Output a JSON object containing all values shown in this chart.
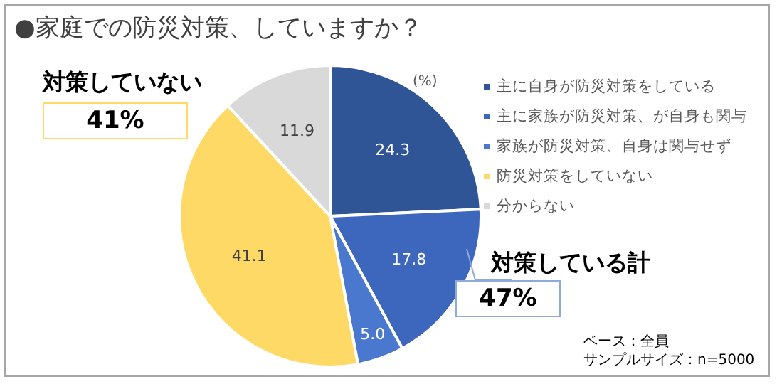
{
  "chart_data": {
    "type": "pie",
    "title": "●家庭での防災対策、していますか？",
    "categories": [
      "主に自身が防災対策をしている",
      "主に家族が防災対策、が自身も関与",
      "家族が防災対策、自身は関与せず",
      "防災対策をしていない",
      "分からない"
    ],
    "values": [
      24.3,
      17.8,
      5.0,
      41.1,
      11.9
    ],
    "colors": [
      "#2f5597",
      "#3c67bd",
      "#4a78cf",
      "#ffd966",
      "#d9d9d9"
    ],
    "value_labels": [
      "24.3",
      "17.8",
      "5.0",
      "41.1",
      "11.9"
    ],
    "legend": "right",
    "annotations": [
      "(%)",
      "対策していない",
      "41%",
      "対策している計",
      "47%",
      "ベース：全員",
      "サンプルサイズ：n=5000"
    ]
  }
}
